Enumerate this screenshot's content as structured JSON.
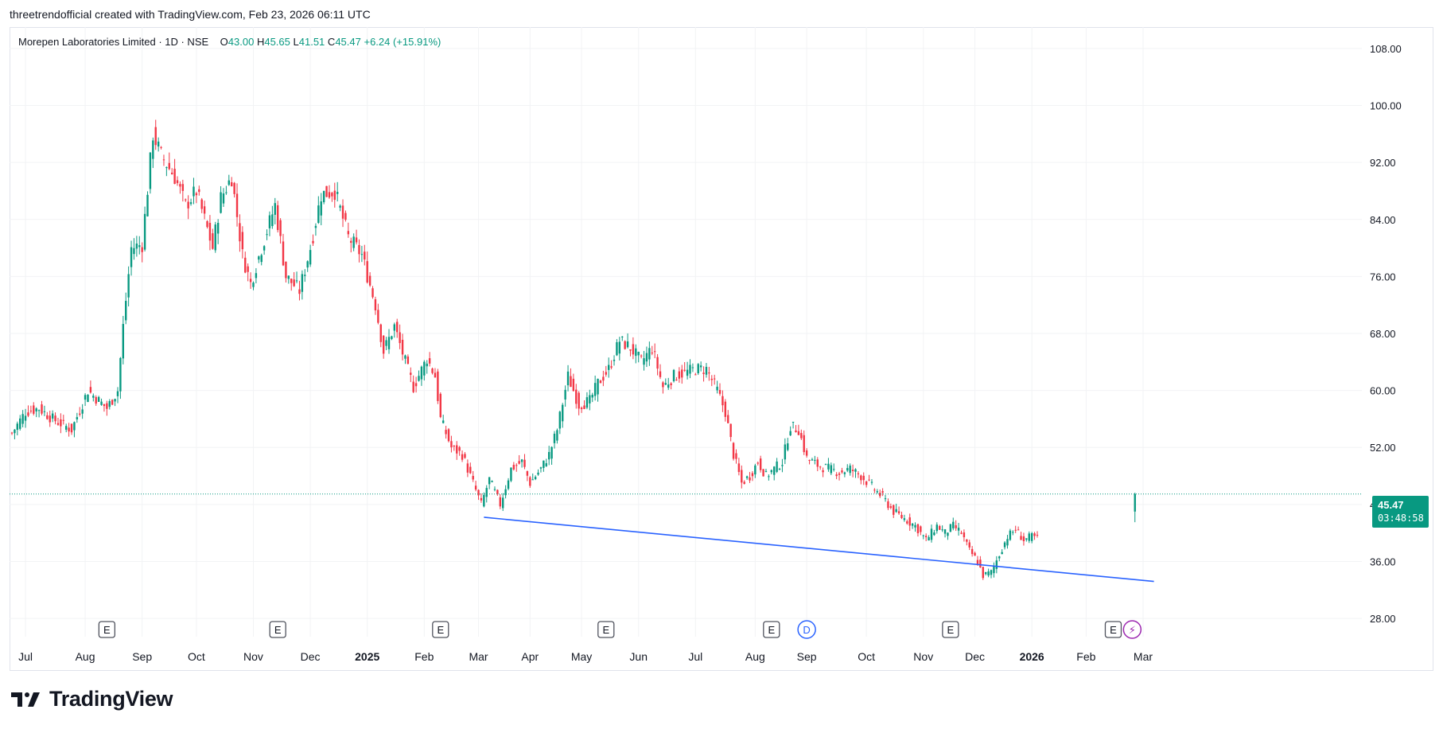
{
  "header": {
    "attribution": "threetrendofficial created with TradingView.com, Feb 23, 2026 06:11 UTC"
  },
  "legend": {
    "symbol": "Morepen Laboratories Limited · 1D · NSE",
    "open_label": "O",
    "open": "43.00",
    "high_label": "H",
    "high": "45.65",
    "low_label": "L",
    "low": "41.51",
    "close_label": "C",
    "close": "45.47",
    "change": "+6.24 (+15.91%)"
  },
  "last_price": {
    "price": "45.47",
    "countdown": "03:48:58"
  },
  "footer": {
    "brand": "TradingView"
  },
  "colors": {
    "up": "#089981",
    "down": "#f23645",
    "trendline": "#2962ff",
    "grid": "#f2f3f5",
    "text": "#131722"
  },
  "chart_data": {
    "type": "candlestick",
    "title": "Morepen Laboratories Limited · 1D · NSE",
    "grid": true,
    "ylim": [
      26.0,
      110.0
    ],
    "y_ticks": [
      "108.00",
      "100.00",
      "92.00",
      "84.00",
      "76.00",
      "68.00",
      "60.00",
      "52.00",
      "44.00",
      "36.00",
      "28.00"
    ],
    "x_ticks": [
      {
        "label": "Jul",
        "idx": 5
      },
      {
        "label": "Aug",
        "idx": 27
      },
      {
        "label": "Sep",
        "idx": 48
      },
      {
        "label": "Oct",
        "idx": 68
      },
      {
        "label": "Nov",
        "idx": 89
      },
      {
        "label": "Dec",
        "idx": 110
      },
      {
        "label": "2025",
        "idx": 131,
        "bold": true
      },
      {
        "label": "Feb",
        "idx": 152
      },
      {
        "label": "Mar",
        "idx": 172
      },
      {
        "label": "Apr",
        "idx": 191
      },
      {
        "label": "May",
        "idx": 210
      },
      {
        "label": "Jun",
        "idx": 231
      },
      {
        "label": "Jul",
        "idx": 252
      },
      {
        "label": "Aug",
        "idx": 274
      },
      {
        "label": "Sep",
        "idx": 293
      },
      {
        "label": "Oct",
        "idx": 315
      },
      {
        "label": "Nov",
        "idx": 336
      },
      {
        "label": "Dec",
        "idx": 355
      },
      {
        "label": "2026",
        "idx": 376,
        "bold": true
      },
      {
        "label": "Feb",
        "idx": 396
      },
      {
        "label": "Mar",
        "idx": 417
      }
    ],
    "events": [
      {
        "label": "E",
        "idx": 35
      },
      {
        "label": "E",
        "idx": 98
      },
      {
        "label": "E",
        "idx": 158
      },
      {
        "label": "E",
        "idx": 219
      },
      {
        "label": "E",
        "idx": 280
      },
      {
        "label": "D",
        "idx": 293
      },
      {
        "label": "E",
        "idx": 346
      },
      {
        "label": "E",
        "idx": 406
      },
      {
        "label": "⚡",
        "idx": 413
      }
    ],
    "anchors": [
      {
        "i": 0,
        "p": 54.0
      },
      {
        "i": 5,
        "p": 57.0
      },
      {
        "i": 10,
        "p": 57.5
      },
      {
        "i": 15,
        "p": 56.0
      },
      {
        "i": 22,
        "p": 54.5
      },
      {
        "i": 28,
        "p": 60.0
      },
      {
        "i": 35,
        "p": 57.5
      },
      {
        "i": 39,
        "p": 60.0
      },
      {
        "i": 41,
        "p": 69.0
      },
      {
        "i": 44,
        "p": 80.0
      },
      {
        "i": 48,
        "p": 80.5
      },
      {
        "i": 52,
        "p": 96.0
      },
      {
        "i": 55,
        "p": 93.0
      },
      {
        "i": 60,
        "p": 90.0
      },
      {
        "i": 64,
        "p": 86.0
      },
      {
        "i": 68,
        "p": 88.0
      },
      {
        "i": 74,
        "p": 80.0
      },
      {
        "i": 77,
        "p": 87.0
      },
      {
        "i": 81,
        "p": 90.0
      },
      {
        "i": 85,
        "p": 79.0
      },
      {
        "i": 88,
        "p": 75.0
      },
      {
        "i": 92,
        "p": 80.0
      },
      {
        "i": 97,
        "p": 86.0
      },
      {
        "i": 101,
        "p": 76.0
      },
      {
        "i": 106,
        "p": 74.0
      },
      {
        "i": 110,
        "p": 80.0
      },
      {
        "i": 114,
        "p": 87.5
      },
      {
        "i": 119,
        "p": 88.0
      },
      {
        "i": 124,
        "p": 81.5
      },
      {
        "i": 129,
        "p": 79.0
      },
      {
        "i": 134,
        "p": 72.0
      },
      {
        "i": 137,
        "p": 65.5
      },
      {
        "i": 141,
        "p": 69.0
      },
      {
        "i": 145,
        "p": 64.0
      },
      {
        "i": 148,
        "p": 60.5
      },
      {
        "i": 153,
        "p": 64.5
      },
      {
        "i": 156,
        "p": 62.0
      },
      {
        "i": 158,
        "p": 56.0
      },
      {
        "i": 162,
        "p": 52.0
      },
      {
        "i": 166,
        "p": 51.0
      },
      {
        "i": 170,
        "p": 47.0
      },
      {
        "i": 173,
        "p": 44.0
      },
      {
        "i": 176,
        "p": 47.5
      },
      {
        "i": 180,
        "p": 44.0
      },
      {
        "i": 184,
        "p": 49.0
      },
      {
        "i": 188,
        "p": 50.0
      },
      {
        "i": 191,
        "p": 47.0
      },
      {
        "i": 195,
        "p": 49.0
      },
      {
        "i": 198,
        "p": 51.0
      },
      {
        "i": 201,
        "p": 54.5
      },
      {
        "i": 205,
        "p": 62.0
      },
      {
        "i": 209,
        "p": 58.0
      },
      {
        "i": 213,
        "p": 58.5
      },
      {
        "i": 216,
        "p": 61.0
      },
      {
        "i": 220,
        "p": 63.0
      },
      {
        "i": 224,
        "p": 67.0
      },
      {
        "i": 228,
        "p": 66.0
      },
      {
        "i": 232,
        "p": 64.0
      },
      {
        "i": 236,
        "p": 66.0
      },
      {
        "i": 240,
        "p": 60.5
      },
      {
        "i": 244,
        "p": 62.0
      },
      {
        "i": 248,
        "p": 62.5
      },
      {
        "i": 252,
        "p": 63.0
      },
      {
        "i": 256,
        "p": 63.0
      },
      {
        "i": 260,
        "p": 60.0
      },
      {
        "i": 263,
        "p": 57.0
      },
      {
        "i": 266,
        "p": 51.0
      },
      {
        "i": 269,
        "p": 47.0
      },
      {
        "i": 272,
        "p": 48.0
      },
      {
        "i": 275,
        "p": 50.0
      },
      {
        "i": 278,
        "p": 48.0
      },
      {
        "i": 281,
        "p": 49.0
      },
      {
        "i": 284,
        "p": 50.0
      },
      {
        "i": 287,
        "p": 55.0
      },
      {
        "i": 290,
        "p": 54.5
      },
      {
        "i": 293,
        "p": 50.5
      },
      {
        "i": 297,
        "p": 49.5
      },
      {
        "i": 301,
        "p": 49.0
      },
      {
        "i": 305,
        "p": 48.5
      },
      {
        "i": 309,
        "p": 49.0
      },
      {
        "i": 313,
        "p": 48.0
      },
      {
        "i": 317,
        "p": 46.5
      },
      {
        "i": 321,
        "p": 45.0
      },
      {
        "i": 325,
        "p": 43.0
      },
      {
        "i": 329,
        "p": 42.0
      },
      {
        "i": 333,
        "p": 41.0
      },
      {
        "i": 337,
        "p": 39.0
      },
      {
        "i": 341,
        "p": 41.0
      },
      {
        "i": 344,
        "p": 40.0
      },
      {
        "i": 347,
        "p": 41.0
      },
      {
        "i": 350,
        "p": 40.0
      },
      {
        "i": 353,
        "p": 37.5
      },
      {
        "i": 356,
        "p": 36.0
      },
      {
        "i": 358,
        "p": 34.0
      },
      {
        "i": 361,
        "p": 34.5
      },
      {
        "i": 364,
        "p": 37.0
      },
      {
        "i": 367,
        "p": 39.5
      },
      {
        "i": 370,
        "p": 40.5
      },
      {
        "i": 373,
        "p": 39.0
      },
      {
        "i": 376,
        "p": 39.5
      },
      {
        "i": 378,
        "p": 39.23
      }
    ],
    "last_candle": {
      "open": 43.0,
      "high": 45.65,
      "low": 41.51,
      "close": 45.47
    },
    "trendline": [
      {
        "idx": 174,
        "price": 42.2
      },
      {
        "idx": 421,
        "price": 33.2
      }
    ],
    "last_price_line": 45.47
  }
}
